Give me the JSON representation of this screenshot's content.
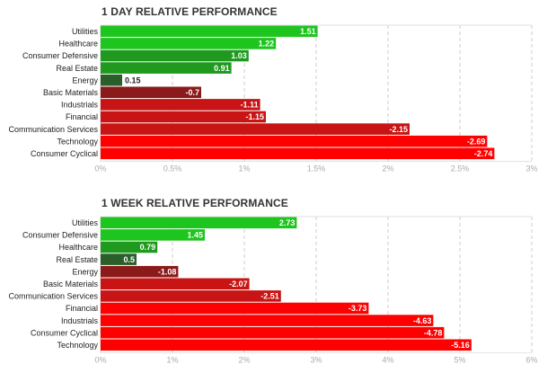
{
  "colors": {
    "strong_positive": "#1ec51e",
    "mid_positive": "#1f9a1f",
    "weak_positive": "#2a5e2a",
    "weak_negative": "#8b1a1a",
    "mid_negative": "#c81414",
    "strong_negative": "#ff0000",
    "grid": "#cccccc"
  },
  "chart_data": [
    {
      "type": "bar",
      "orientation": "horizontal",
      "title": "1 DAY RELATIVE PERFORMANCE",
      "categories": [
        "Utilities",
        "Healthcare",
        "Consumer Defensive",
        "Real Estate",
        "Energy",
        "Basic Materials",
        "Industrials",
        "Financial",
        "Communication Services",
        "Technology",
        "Consumer Cyclical"
      ],
      "values": [
        1.51,
        1.22,
        1.03,
        0.91,
        0.15,
        -0.7,
        -1.11,
        -1.15,
        -2.15,
        -2.69,
        -2.74
      ],
      "value_labels": [
        "1.51",
        "1.22",
        "1.03",
        "0.91",
        "0.15",
        "-0.7",
        "-1.11",
        "-1.15",
        "-2.15",
        "-2.69",
        "-2.74"
      ],
      "xticks": [
        0,
        0.5,
        1,
        1.5,
        2,
        2.5,
        3
      ],
      "xtick_labels": [
        "0%",
        "0.5%",
        "1%",
        "1.5%",
        "2%",
        "2.5%",
        "3%"
      ],
      "xlim": [
        0,
        3
      ],
      "bar_length": "absolute value",
      "grid": true,
      "legend": "none"
    },
    {
      "type": "bar",
      "orientation": "horizontal",
      "title": "1 WEEK RELATIVE PERFORMANCE",
      "categories": [
        "Utilities",
        "Consumer Defensive",
        "Healthcare",
        "Real Estate",
        "Energy",
        "Basic Materials",
        "Communication Services",
        "Financial",
        "Industrials",
        "Consumer Cyclical",
        "Technology"
      ],
      "values": [
        2.73,
        1.45,
        0.79,
        0.5,
        -1.08,
        -2.07,
        -2.51,
        -3.73,
        -4.63,
        -4.78,
        -5.16
      ],
      "value_labels": [
        "2.73",
        "1.45",
        "0.79",
        "0.5",
        "-1.08",
        "-2.07",
        "-2.51",
        "-3.73",
        "-4.63",
        "-4.78",
        "-5.16"
      ],
      "xticks": [
        0,
        1,
        2,
        3,
        4,
        5,
        6
      ],
      "xtick_labels": [
        "0%",
        "1%",
        "2%",
        "3%",
        "4%",
        "5%",
        "6%"
      ],
      "xlim": [
        0,
        6
      ],
      "bar_length": "absolute value",
      "grid": true,
      "legend": "none"
    }
  ]
}
